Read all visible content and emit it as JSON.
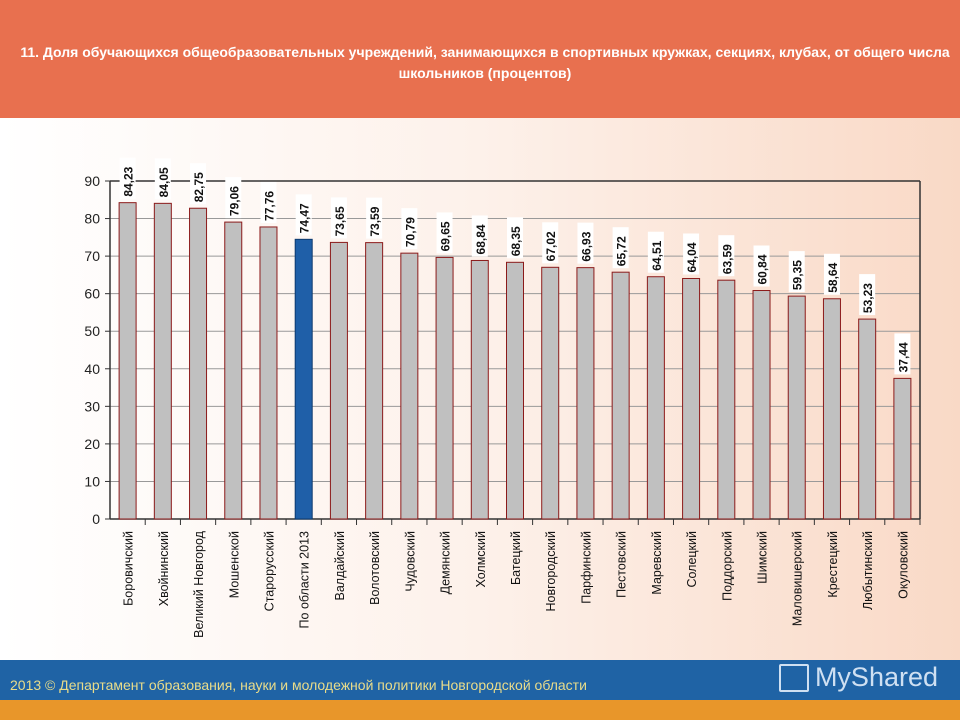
{
  "title": "11. Доля обучающихся общеобразовательных учреждений, занимающихся в спортивных кружках, секциях, клубах, от общего числа школьников (процентов)",
  "footer": {
    "text": "2013 © Департамент образования, науки и молодежной политики Новгородской области",
    "logo": "MyShared"
  },
  "colors": {
    "header": "#E8704F",
    "footer": "#1F63A5",
    "bar": "#C0C0C0",
    "bar_border": "#8B1A1A",
    "highlight_bar": "#1F5FA8"
  },
  "chart_data": {
    "type": "bar",
    "title": "",
    "xlabel": "",
    "ylabel": "",
    "ylim": [
      0,
      90
    ],
    "yticks": [
      0,
      10,
      20,
      30,
      40,
      50,
      60,
      70,
      80,
      90
    ],
    "grid": true,
    "highlight_category": "По области 2013",
    "categories": [
      "Боровичский",
      "Хвойнинский",
      "Великий Новгород",
      "Мошенской",
      "Старорусский",
      "По области 2013",
      "Валдайский",
      "Волотовский",
      "Чудовский",
      "Демянский",
      "Холмский",
      "Батецкий",
      "Новгородский",
      "Парфинский",
      "Пестовский",
      "Маревский",
      "Солецкий",
      "Поддорский",
      "Шимский",
      "Маловишерский",
      "Крестецкий",
      "Любытинский",
      "Окуловский"
    ],
    "values": [
      84.23,
      84.05,
      82.75,
      79.06,
      77.76,
      74.47,
      73.65,
      73.59,
      70.79,
      69.65,
      68.84,
      68.35,
      67.02,
      66.93,
      65.72,
      64.51,
      64.04,
      63.59,
      60.84,
      59.35,
      58.64,
      53.23,
      37.44
    ],
    "value_labels": [
      "84,23",
      "84,05",
      "82,75",
      "79,06",
      "77,76",
      "74,47",
      "73,65",
      "73,59",
      "70,79",
      "69,65",
      "68,84",
      "68,35",
      "67,02",
      "66,93",
      "65,72",
      "64,51",
      "64,04",
      "63,59",
      "60,84",
      "59,35",
      "58,64",
      "53,23",
      "37,44"
    ]
  }
}
